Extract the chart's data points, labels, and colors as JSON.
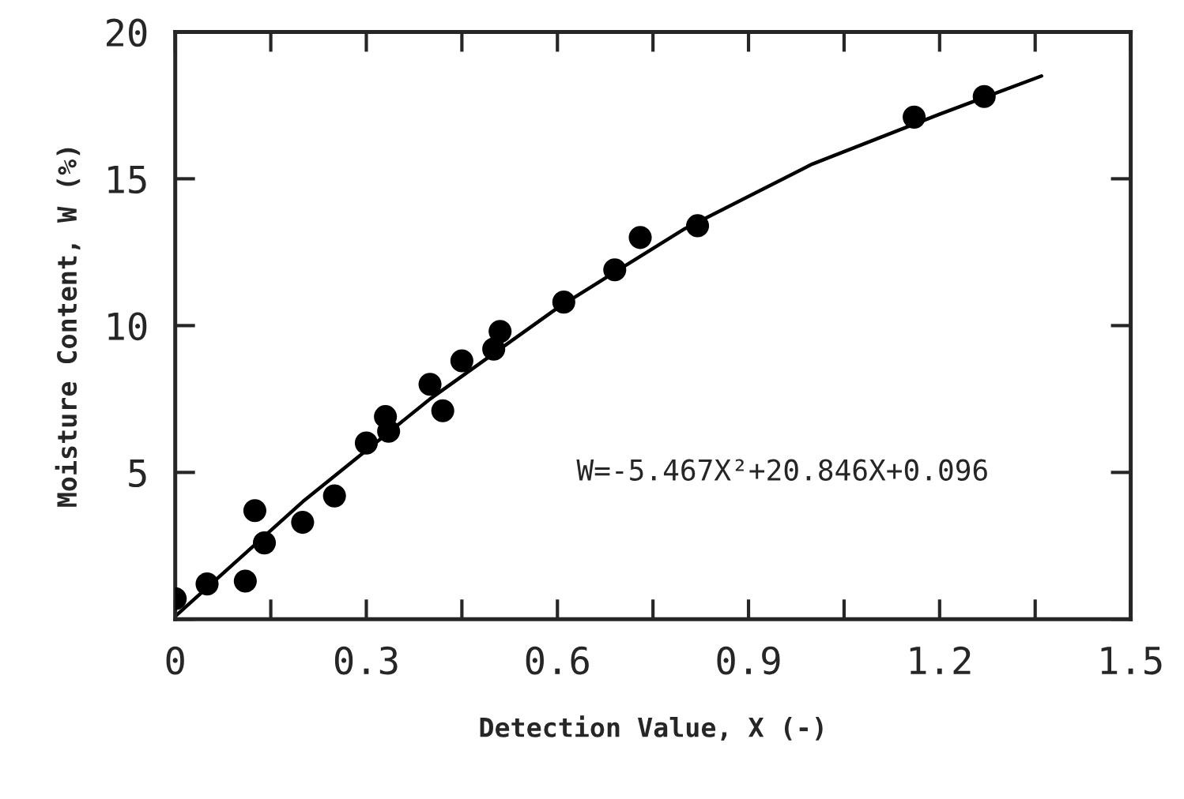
{
  "chart_data": {
    "type": "scatter",
    "xlabel": "Detection Value, X (-)",
    "ylabel": "Moisture Content, W (%)",
    "xlim": [
      0,
      1.5
    ],
    "ylim": [
      0,
      20
    ],
    "xticks": [
      0,
      {
        "value": 0.15,
        "label": null
      },
      {
        "value": 0.3,
        "label": "0.3"
      },
      {
        "value": 0.45,
        "label": null
      },
      {
        "value": 0.6,
        "label": "0.6"
      },
      {
        "value": 0.75,
        "label": null
      },
      {
        "value": 0.9,
        "label": "0.9"
      },
      {
        "value": 1.05,
        "label": null
      },
      {
        "value": 1.2,
        "label": "1.2"
      },
      {
        "value": 1.35,
        "label": null
      },
      {
        "value": 1.5,
        "label": "1.5"
      }
    ],
    "yticks": [
      {
        "value": 0,
        "label": null
      },
      5,
      10,
      15,
      20
    ],
    "grid": false,
    "legend": false,
    "series": [
      {
        "color": "#000000",
        "marker": "circle",
        "x": [
          0.0,
          0.05,
          0.11,
          0.125,
          0.14,
          0.2,
          0.25,
          0.3,
          0.33,
          0.335,
          0.4,
          0.42,
          0.45,
          0.5,
          0.51,
          0.61,
          0.69,
          0.73,
          0.82,
          1.16,
          1.27
        ],
        "values": [
          0.7,
          1.2,
          1.3,
          3.7,
          2.6,
          3.3,
          4.2,
          6.0,
          6.9,
          6.4,
          8.0,
          7.1,
          8.8,
          9.2,
          9.8,
          10.8,
          11.9,
          13.0,
          13.4,
          17.1,
          17.8
        ]
      },
      {
        "type": "line",
        "color": "#000000",
        "marker": "none",
        "line_style": "solid",
        "x": [
          0,
          0.2,
          0.4,
          0.6,
          0.8,
          1.0,
          1.2,
          1.36
        ],
        "values": [
          0.1,
          4.0,
          7.5,
          10.6,
          13.3,
          15.5,
          17.2,
          18.5
        ]
      }
    ],
    "annotations": [
      "W=-5.467X²+20.846X+0.096"
    ]
  }
}
